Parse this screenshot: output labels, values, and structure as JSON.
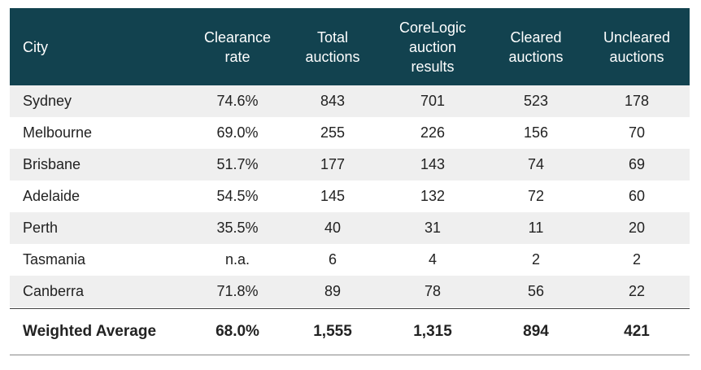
{
  "table": {
    "headers": [
      "City",
      "Clearance\nrate",
      "Total\nauctions",
      "CoreLogic\nauction\nresults",
      "Cleared\nauctions",
      "Uncleared\nauctions"
    ],
    "rows": [
      [
        "Sydney",
        "74.6%",
        "843",
        "701",
        "523",
        "178"
      ],
      [
        "Melbourne",
        "69.0%",
        "255",
        "226",
        "156",
        "70"
      ],
      [
        "Brisbane",
        "51.7%",
        "177",
        "143",
        "74",
        "69"
      ],
      [
        "Adelaide",
        "54.5%",
        "145",
        "132",
        "72",
        "60"
      ],
      [
        "Perth",
        "35.5%",
        "40",
        "31",
        "11",
        "20"
      ],
      [
        "Tasmania",
        "n.a.",
        "6",
        "4",
        "2",
        "2"
      ],
      [
        "Canberra",
        "71.8%",
        "89",
        "78",
        "56",
        "22"
      ]
    ],
    "total": [
      "Weighted Average",
      "68.0%",
      "1,555",
      "1,315",
      "894",
      "421"
    ]
  },
  "colors": {
    "header_bg": "#12424f",
    "alt_row_bg": "#efefef"
  }
}
